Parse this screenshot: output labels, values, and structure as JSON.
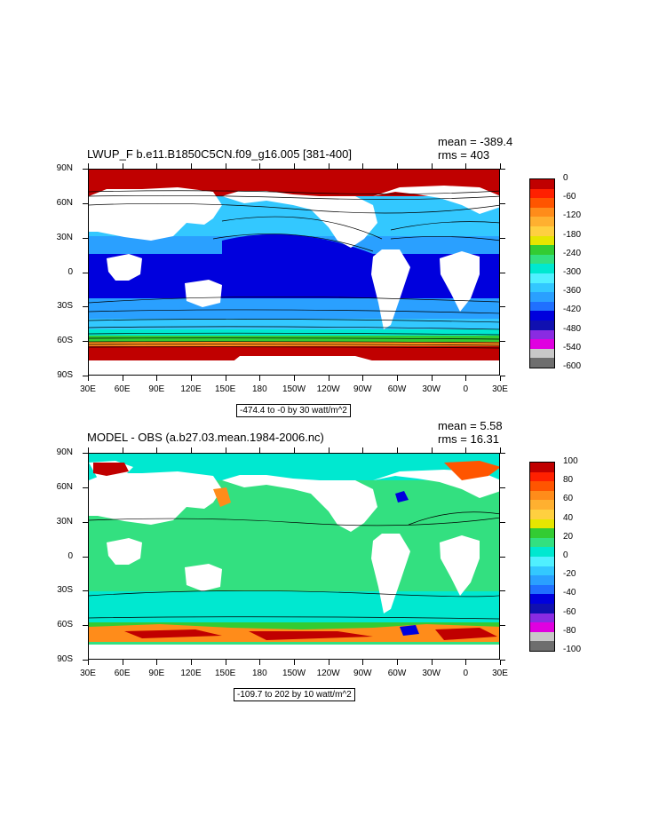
{
  "top": {
    "title": "LWUP_F b.e11.B1850C5CN.f09_g16.005 [381-400]",
    "mean": "mean = -389.4",
    "rms": "rms = 403",
    "range": "-474.4 to -0 by 30 watt/m^2",
    "colorbar_labels": [
      "0",
      "-60",
      "-120",
      "-180",
      "-240",
      "-300",
      "-360",
      "-420",
      "-480",
      "-540",
      "-600"
    ],
    "colorbar_colors": [
      "#c00000",
      "#ff2000",
      "#ff5500",
      "#ff8c1a",
      "#ffb030",
      "#ffd040",
      "#e6e600",
      "#33cc33",
      "#33e080",
      "#00e8d0",
      "#50f0ff",
      "#33c8ff",
      "#2aa0ff",
      "#2070ff",
      "#0000dd",
      "#1010b0",
      "#8a2be2",
      "#e000e0",
      "#c8c8c8",
      "#6e6e6e"
    ]
  },
  "bottom": {
    "title": "MODEL - OBS (a.b27.03.mean.1984-2006.nc)",
    "mean": "mean = 5.58",
    "rms": "rms = 16.31",
    "range": "-109.7 to 202 by 10 watt/m^2",
    "colorbar_labels": [
      "100",
      "80",
      "60",
      "40",
      "20",
      "0",
      "-20",
      "-40",
      "-60",
      "-80",
      "-100"
    ],
    "colorbar_colors": [
      "#c00000",
      "#ff2000",
      "#ff5500",
      "#ff8c1a",
      "#ffb030",
      "#ffd040",
      "#e6e600",
      "#33cc33",
      "#33e080",
      "#00e8d0",
      "#50f0ff",
      "#33c8ff",
      "#2aa0ff",
      "#2070ff",
      "#0000dd",
      "#1010b0",
      "#8a2be2",
      "#e000e0",
      "#c8c8c8",
      "#6e6e6e"
    ]
  },
  "axes": {
    "lat_labels": [
      "90N",
      "60N",
      "30N",
      "0",
      "30S",
      "60S",
      "90S"
    ],
    "lon_labels": [
      "30E",
      "60E",
      "90E",
      "120E",
      "150E",
      "180",
      "150W",
      "120W",
      "90W",
      "60W",
      "30W",
      "0",
      "30E"
    ]
  }
}
